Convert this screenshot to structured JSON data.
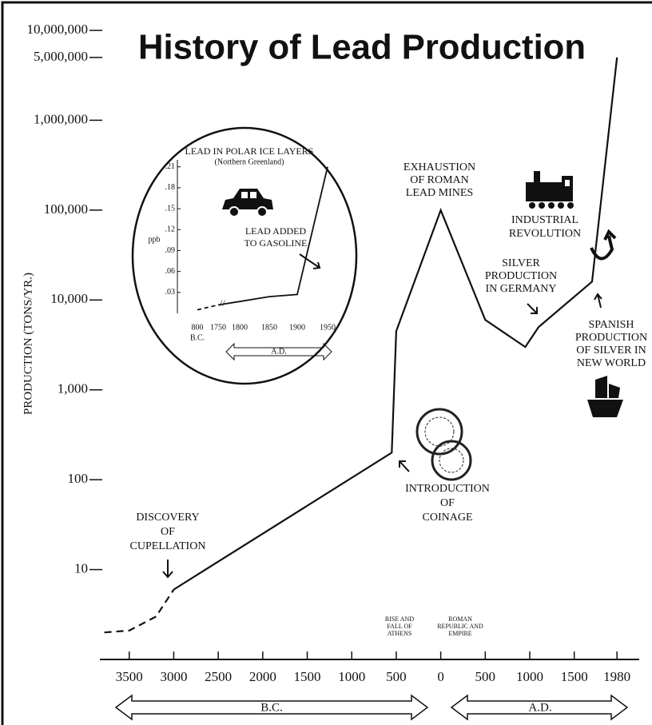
{
  "chart_data": [
    {
      "type": "line",
      "title": "History of Lead Production",
      "y_label": "PRODUCTION (TONS/YR.)",
      "log_scale": true,
      "xlim": [
        -3830,
        2230
      ],
      "ylim": [
        1,
        10000000
      ],
      "xticks": [
        {
          "value": -3500,
          "label": "3500"
        },
        {
          "value": -3000,
          "label": "3000"
        },
        {
          "value": -2500,
          "label": "2500"
        },
        {
          "value": -2000,
          "label": "2000"
        },
        {
          "value": -1500,
          "label": "1500"
        },
        {
          "value": -1000,
          "label": "1000"
        },
        {
          "value": -500,
          "label": "500"
        },
        0,
        500,
        1000,
        1500,
        1980
      ],
      "yticks": [
        {
          "value": 10000000,
          "label": "10,000,000"
        },
        {
          "value": 5000000,
          "label": "5,000,000"
        },
        {
          "value": 1000000,
          "label": "1,000,000"
        },
        {
          "value": 100000,
          "label": "100,000"
        },
        {
          "value": 10000,
          "label": "10,000"
        },
        {
          "value": 1000,
          "label": "1,000"
        },
        100,
        10
      ],
      "series": [
        {
          "color": "#111111",
          "dashed": true,
          "x": [
            -3780,
            -3500,
            -3200,
            -3000
          ],
          "values": [
            2,
            2.1,
            3,
            6
          ]
        },
        {
          "color": "#111111",
          "dashed": false,
          "x": [
            -3000,
            -550,
            -500,
            0,
            500,
            950,
            1100,
            1700,
            1980
          ],
          "values": [
            6,
            200,
            4500,
            100000,
            6000,
            3000,
            5000,
            16000,
            5000000
          ]
        }
      ],
      "annotations": [
        {
          "lines": [
            "DISCOVERY",
            "OF",
            "CUPELLATION"
          ]
        },
        {
          "lines": [
            "INTRODUCTION",
            "OF",
            "COINAGE"
          ]
        },
        {
          "lines": [
            "EXHAUSTION",
            "OF ROMAN",
            "LEAD MINES"
          ]
        },
        {
          "lines": [
            "SILVER",
            "PRODUCTION",
            "IN GERMANY"
          ]
        },
        {
          "lines": [
            "INDUSTRIAL",
            "REVOLUTION"
          ]
        },
        {
          "lines": [
            "SPANISH",
            "PRODUCTION",
            "OF SILVER IN",
            "NEW WORLD"
          ]
        },
        {
          "lines": [
            "RISE AND",
            "FALL OF",
            "ATHENS"
          ]
        },
        {
          "lines": [
            "ROMAN",
            "REPUBLIC AND",
            "EMPIRE"
          ]
        }
      ],
      "era_labels": [
        "B.C.",
        "A.D."
      ]
    },
    {
      "type": "line",
      "title": "LEAD IN POLAR ICE LAYERS",
      "subtitle": "(Northern Greenland)",
      "y_label": "ppb",
      "categories": [
        "800",
        "1750",
        "1800",
        "1850",
        "1900",
        "1950"
      ],
      "category_note": "B.C.",
      "ylim": [
        0,
        0.22
      ],
      "yticks": [
        {
          "value": 0.21,
          "label": ".21"
        },
        {
          "value": 0.18,
          "label": ".18"
        },
        {
          "value": 0.15,
          "label": ".15"
        },
        {
          "value": 0.12,
          "label": ".12"
        },
        {
          "value": 0.09,
          "label": ".09"
        },
        {
          "value": 0.06,
          "label": ".06"
        },
        {
          "value": 0.03,
          "label": ".03"
        }
      ],
      "series": [
        {
          "color": "#111111",
          "dashed": true,
          "values": [
            0.005,
            0.012,
            null,
            null,
            null,
            null
          ]
        },
        {
          "color": "#111111",
          "dashed": false,
          "values": [
            null,
            0.012,
            0.017,
            0.024,
            0.027,
            0.21
          ]
        }
      ],
      "annotations": [
        {
          "lines": [
            "LEAD ADDED",
            "TO GASOLINE"
          ]
        }
      ],
      "era_label": "A.D."
    }
  ]
}
